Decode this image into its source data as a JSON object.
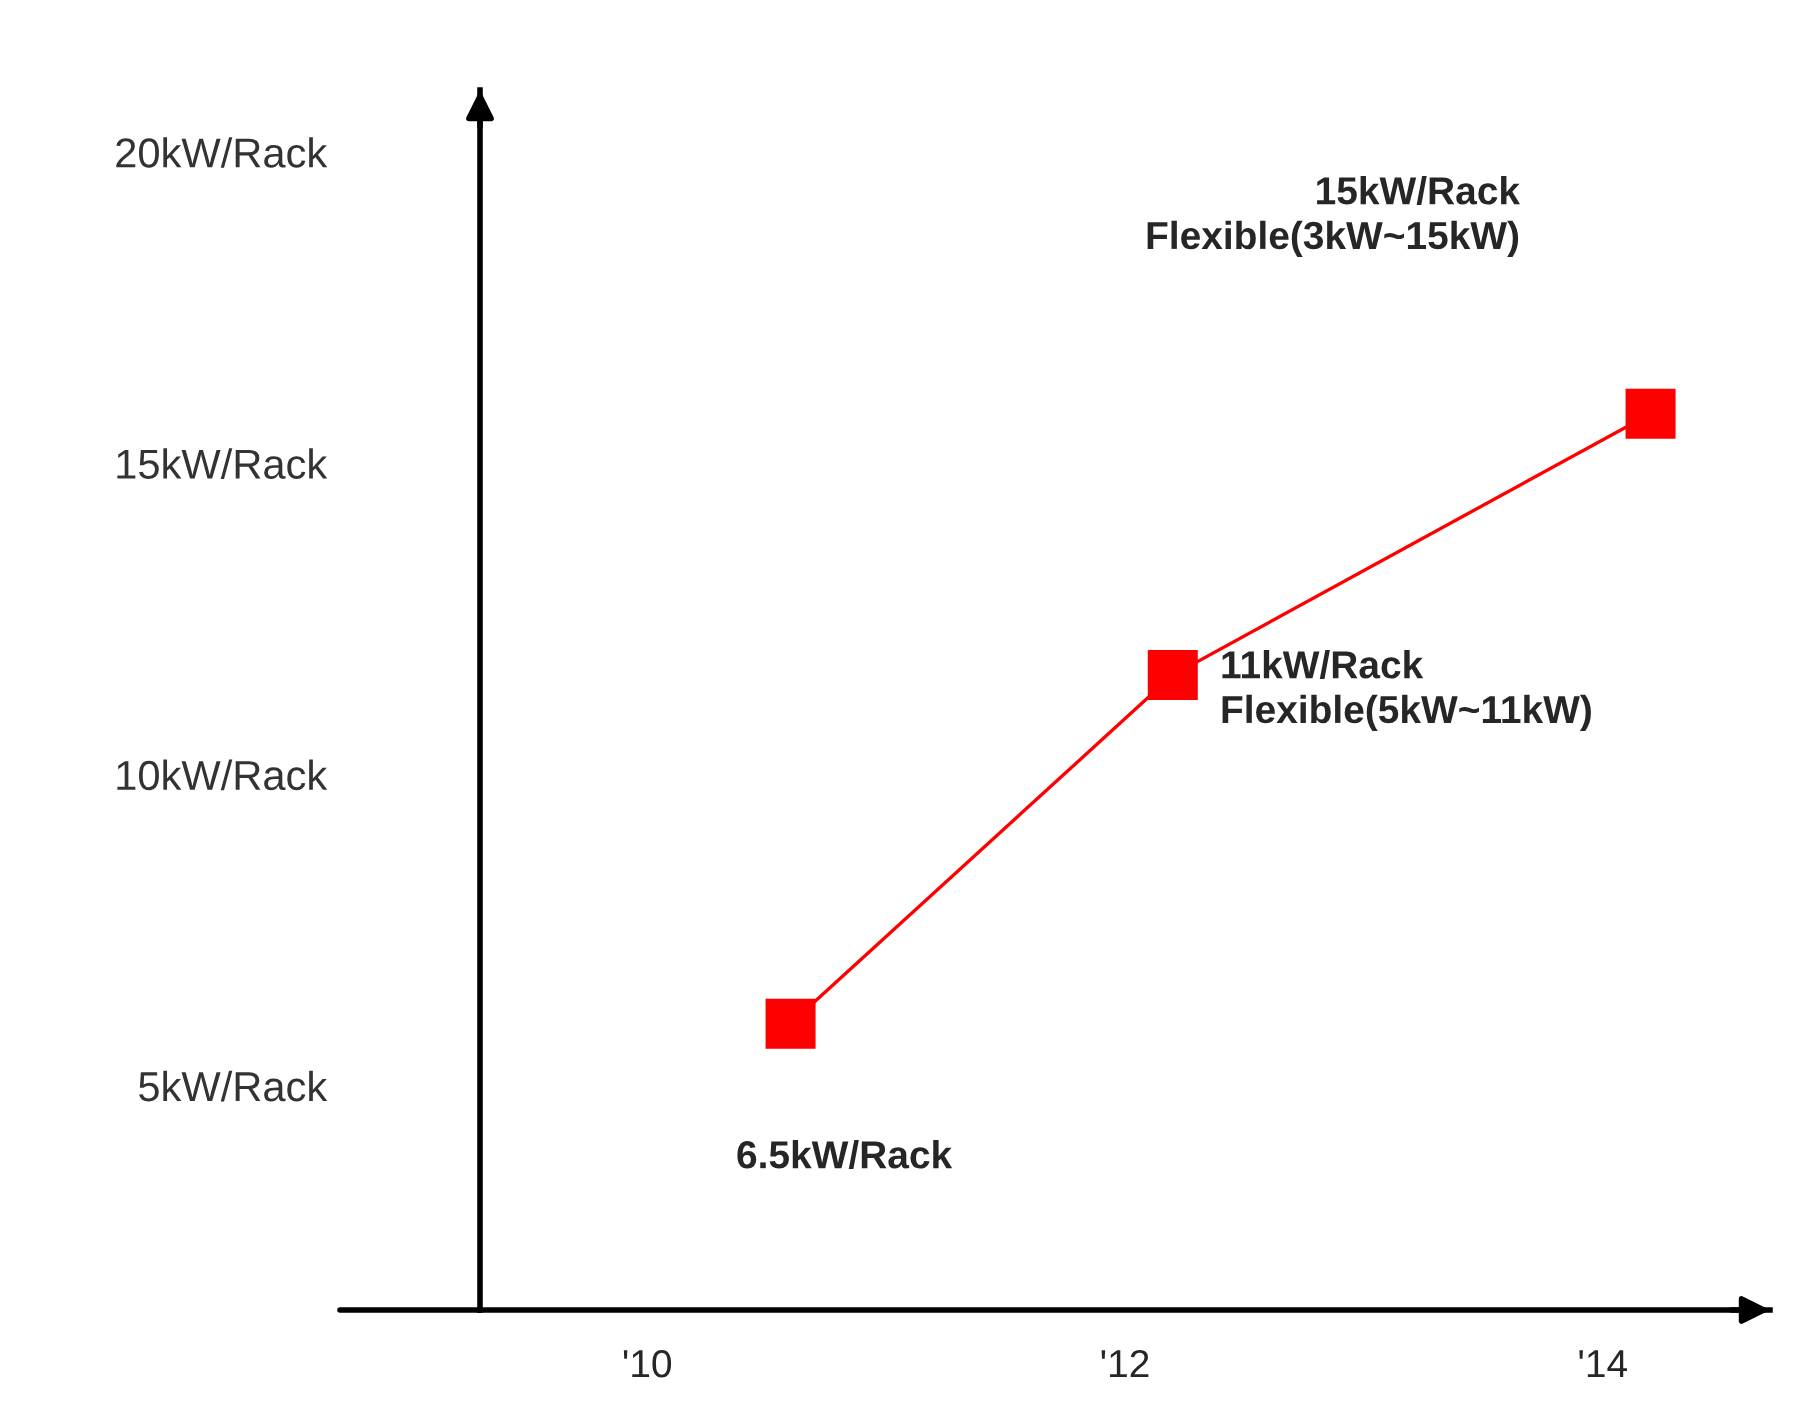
{
  "chart_data": {
    "type": "line",
    "x": [
      2010.6,
      2012.2,
      2014.2
    ],
    "series": [
      {
        "color": "#ff0000",
        "values": [
          6.0,
          11.6,
          15.8
        ]
      }
    ],
    "marker": "square",
    "xlim": [
      2009.3,
      2014.7
    ],
    "xticks": [
      {
        "value": 2010,
        "label": "'10"
      },
      {
        "value": 2012,
        "label": "'12"
      },
      {
        "value": 2014,
        "label": "'14"
      }
    ],
    "ylim": [
      1.4,
      21.0
    ],
    "yticks": [
      {
        "value": 5,
        "label": "5kW/Rack"
      },
      {
        "value": 10,
        "label": "10kW/Rack"
      },
      {
        "value": 15,
        "label": "15kW/Rack"
      },
      {
        "value": 20,
        "label": "20kW/Rack"
      }
    ],
    "annotations": [
      "6.5kW/Rack",
      "11kW/Rack\nFlexible(5kW~11kW)",
      "15kW/Rack\nFlexible(3kW~15kW)"
    ]
  }
}
